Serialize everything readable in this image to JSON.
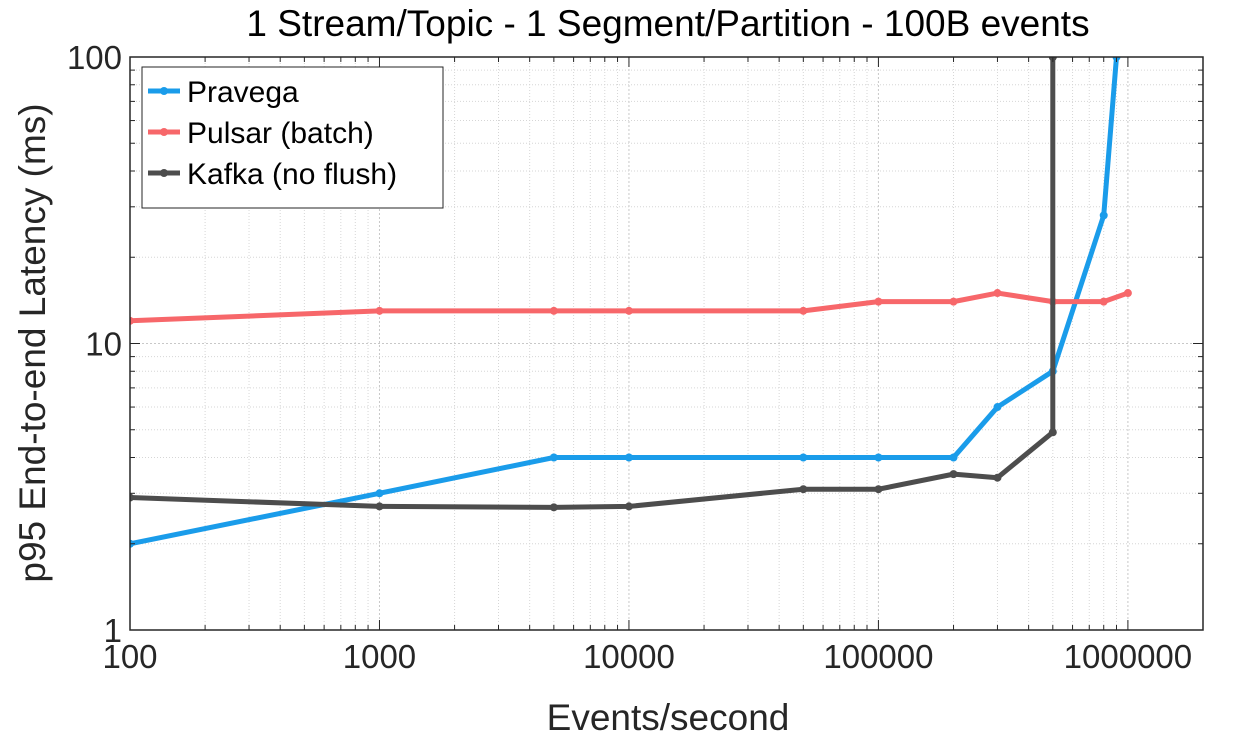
{
  "chart_data": {
    "type": "line",
    "title": "1 Stream/Topic - 1 Segment/Partition - 100B events",
    "xlabel": "Events/second",
    "ylabel": "p95 End-to-end Latency (ms)",
    "xscale": "log",
    "yscale": "log",
    "xlim": [
      100,
      2000000
    ],
    "ylim": [
      1,
      100
    ],
    "grid": true,
    "minor_grid": true,
    "legend_position": "top-left",
    "x_tick_labels": [
      "100",
      "1000",
      "10000",
      "100000",
      "1000000"
    ],
    "x_tick_values": [
      100,
      1000,
      10000,
      100000,
      1000000
    ],
    "y_tick_labels": [
      "1",
      "10",
      "100"
    ],
    "y_tick_values": [
      1,
      10,
      100
    ],
    "series": [
      {
        "name": "Pravega",
        "color": "#1a9cea",
        "x": [
          100,
          1000,
          5000,
          10000,
          50000,
          100000,
          200000,
          300000,
          500000,
          800000,
          900000
        ],
        "y": [
          2.0,
          3.0,
          4.0,
          4.0,
          4.0,
          4.0,
          4.0,
          6.0,
          8.0,
          28.0,
          100.0
        ]
      },
      {
        "name": "Pulsar (batch)",
        "color": "#f7676a",
        "x": [
          100,
          1000,
          5000,
          10000,
          50000,
          100000,
          200000,
          300000,
          500000,
          800000,
          1000000
        ],
        "y": [
          12.0,
          13.0,
          13.0,
          13.0,
          13.0,
          14.0,
          14.0,
          15.0,
          14.0,
          14.0,
          15.0
        ]
      },
      {
        "name": "Kafka (no flush)",
        "color": "#4d4d4d",
        "x": [
          100,
          1000,
          5000,
          10000,
          50000,
          100000,
          200000,
          300000,
          500000,
          500000,
          500000
        ],
        "y": [
          2.9,
          2.7,
          2.68,
          2.7,
          3.1,
          3.1,
          3.5,
          3.4,
          4.9,
          100.0,
          100.0
        ]
      }
    ]
  }
}
